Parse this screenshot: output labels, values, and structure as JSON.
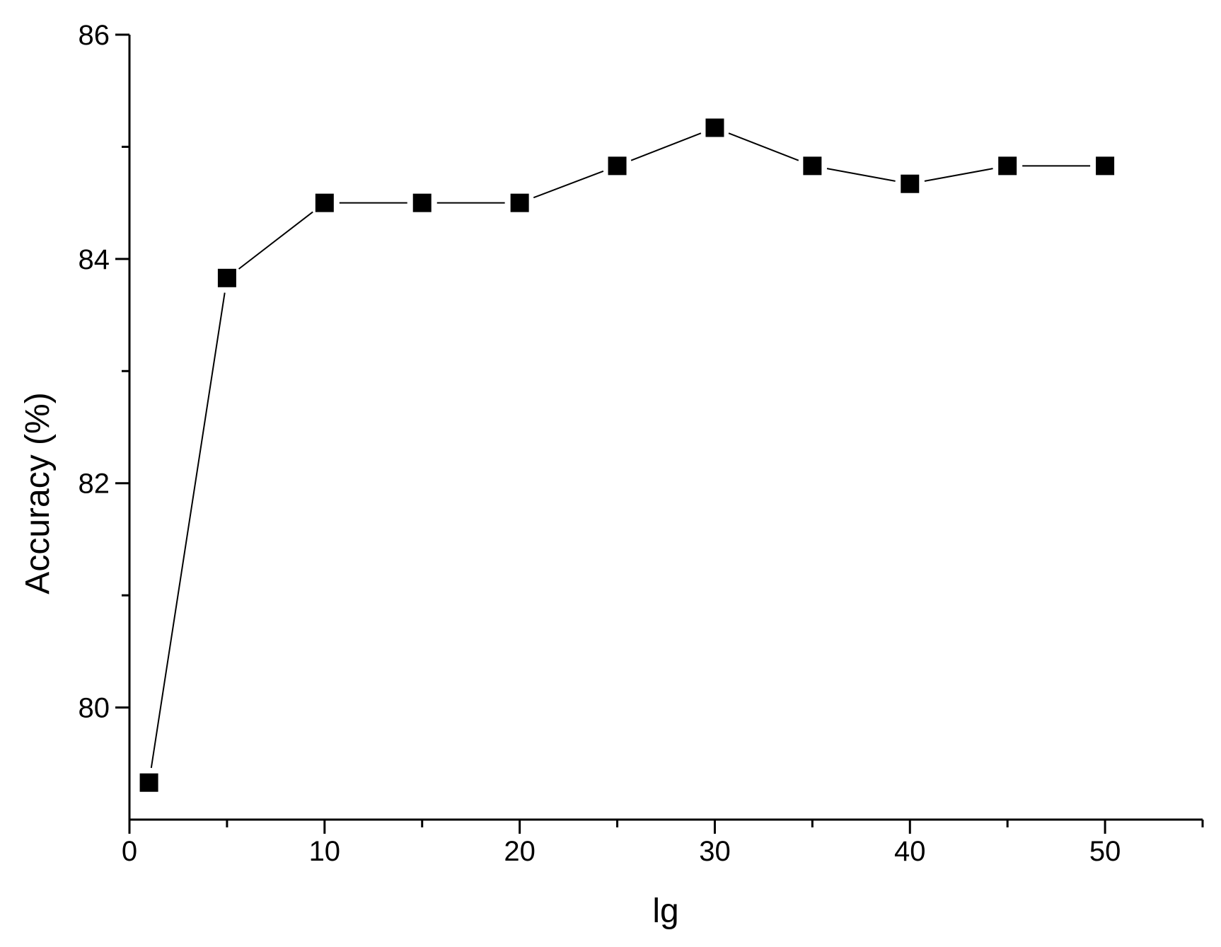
{
  "chart_data": {
    "type": "line",
    "xlabel": "lg",
    "ylabel": "Accuracy (%)",
    "xlim": [
      0,
      55
    ],
    "ylim": [
      79,
      86
    ],
    "x_ticks": [
      0,
      10,
      20,
      30,
      40,
      50
    ],
    "x_minor_ticks": [
      5,
      15,
      25,
      35,
      45,
      55
    ],
    "y_ticks": [
      80,
      82,
      84,
      86
    ],
    "y_minor_ticks": [
      81,
      83,
      85
    ],
    "grid": false,
    "series": [
      {
        "marker": "square",
        "color": "#000000",
        "x": [
          1,
          5,
          10,
          15,
          20,
          25,
          30,
          35,
          40,
          45,
          50
        ],
        "y": [
          79.33,
          83.83,
          84.5,
          84.5,
          84.5,
          84.83,
          85.17,
          84.83,
          84.67,
          84.83,
          84.83
        ]
      }
    ]
  }
}
